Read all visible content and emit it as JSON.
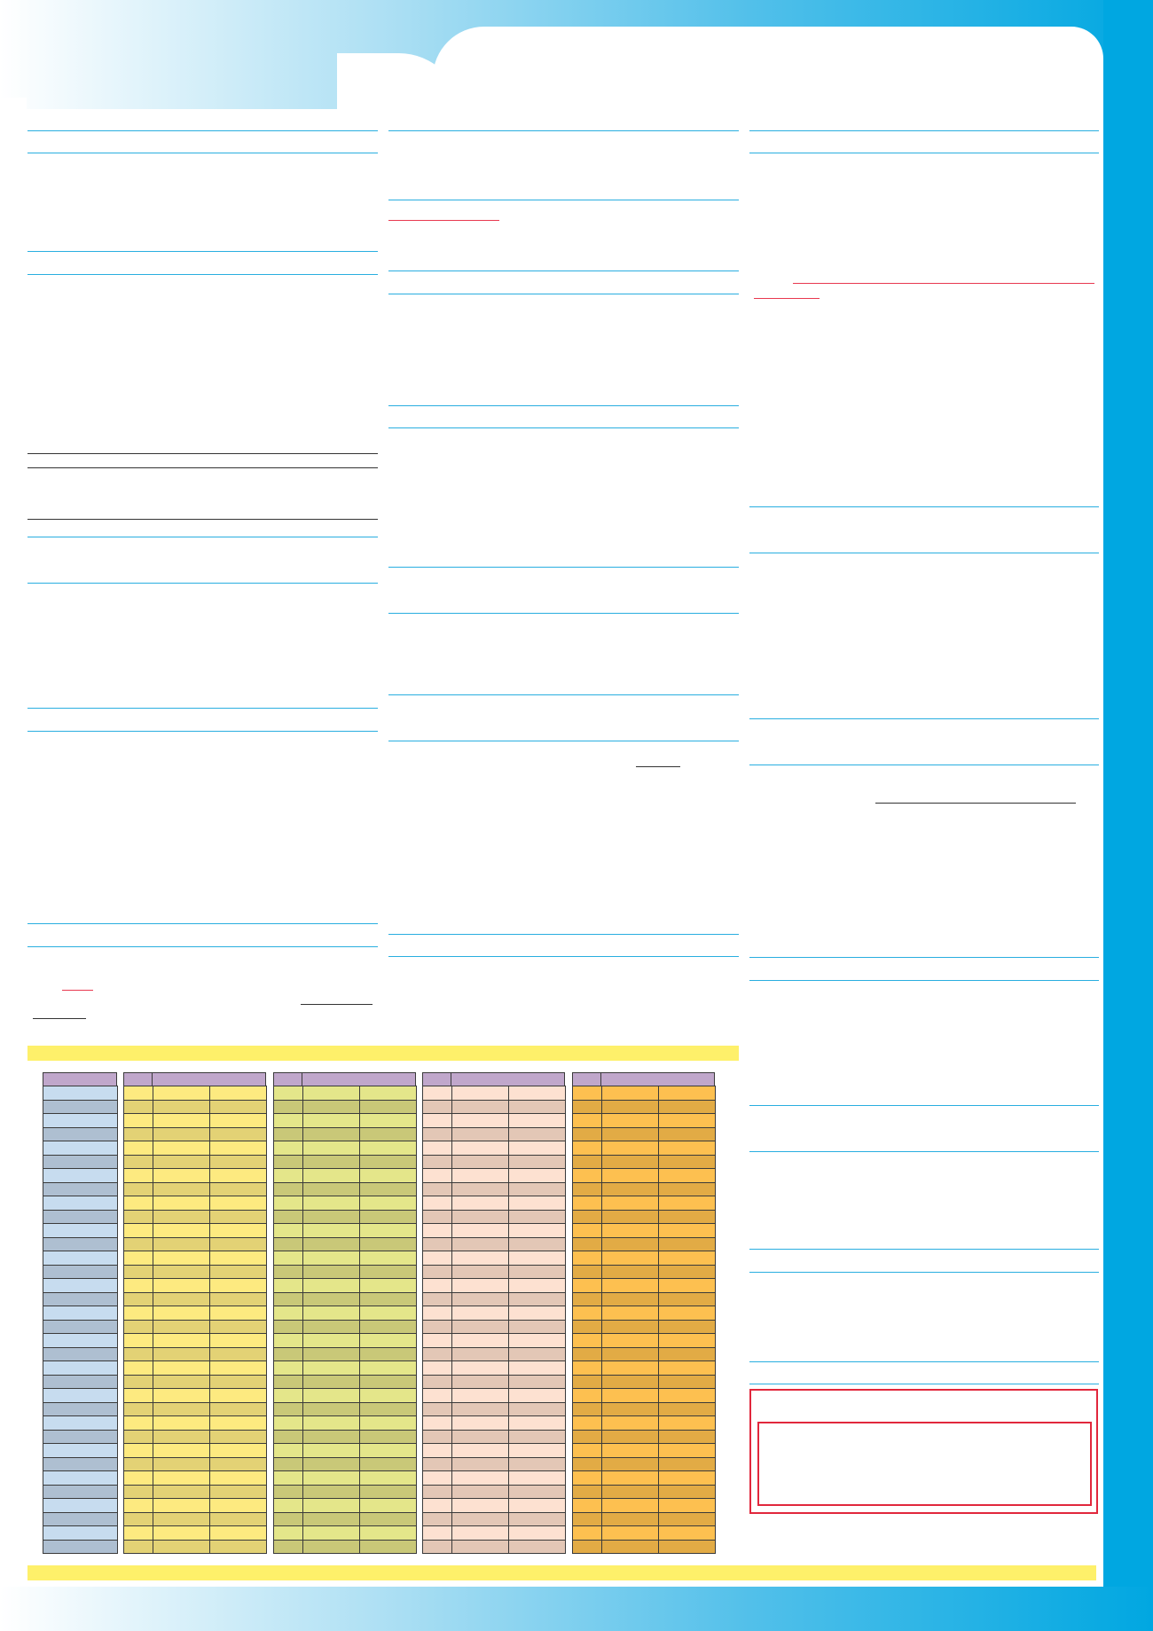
{
  "colors": {
    "frame": "#00a7e1",
    "rule": "#29aee0",
    "band": "#fef06a",
    "link": "#e8384f",
    "notice_border": "#e1273c",
    "table_header": "#c0a7cb",
    "table_group_1": [
      "#c7dcef",
      "#aebfd1"
    ],
    "table_group_2": [
      "#fdea80",
      "#e3d275"
    ],
    "table_group_3": [
      "#e4e68a",
      "#c9c878"
    ],
    "table_group_4": [
      "#fde1d1",
      "#e3c7b6"
    ],
    "table_group_5": [
      "#fdc050",
      "#e2ab45"
    ]
  },
  "table": {
    "row_count": 34,
    "groups": 5
  },
  "icons": []
}
